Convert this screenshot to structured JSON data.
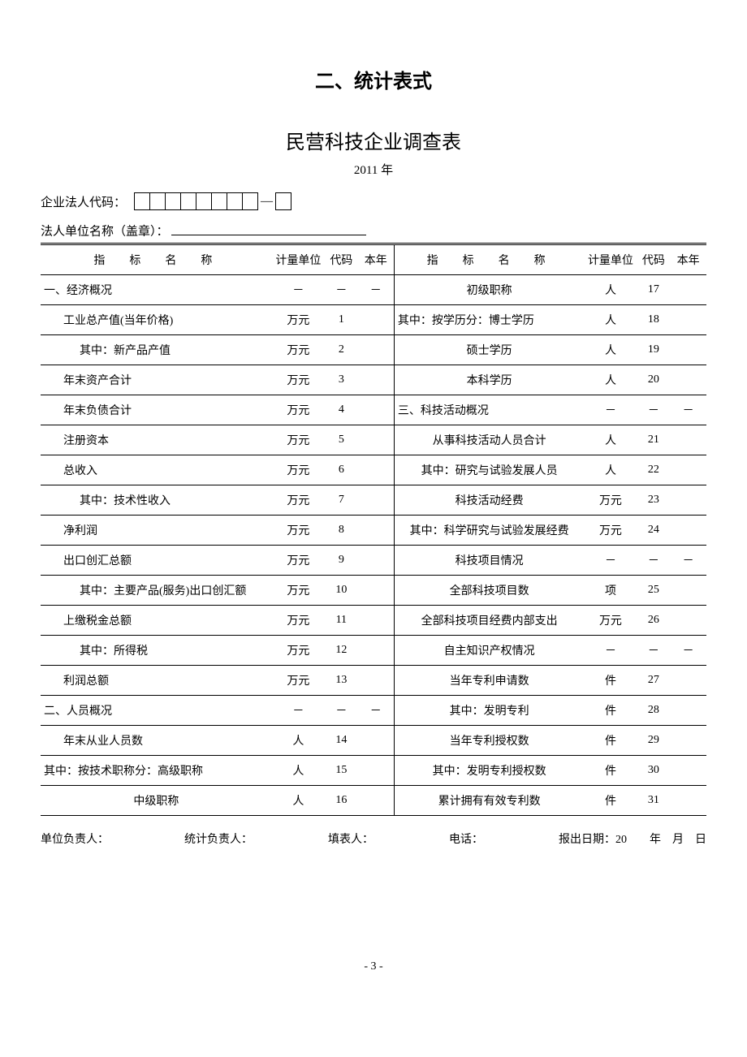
{
  "heading": "二、统计表式",
  "subtitle": "民营科技企业调查表",
  "year": "2011 年",
  "code_label": "企业法人代码：",
  "name_label": "法人单位名称（盖章）：",
  "headers": {
    "indicator": "指　标　名　称",
    "unit": "计量单位",
    "code": "代码",
    "year_col": "本年"
  },
  "rows": [
    {
      "l_name": "一、经济概况",
      "l_class": "tl bold",
      "l_unit": "－",
      "l_code": "－",
      "l_val": "－",
      "r_name": "初级职称",
      "r_class": "",
      "r_unit": "人",
      "r_code": "17",
      "r_val": ""
    },
    {
      "l_name": "工业总产值(当年价格)",
      "l_class": "indent1",
      "l_unit": "万元",
      "l_code": "1",
      "l_val": "",
      "r_name": "其中：按学历分：博士学历",
      "r_class": "tl",
      "r_unit": "人",
      "r_code": "18",
      "r_val": ""
    },
    {
      "l_name": "其中：新产品产值",
      "l_class": "indent2",
      "l_unit": "万元",
      "l_code": "2",
      "l_val": "",
      "r_name": "硕士学历",
      "r_class": "",
      "r_unit": "人",
      "r_code": "19",
      "r_val": ""
    },
    {
      "l_name": "年末资产合计",
      "l_class": "indent1",
      "l_unit": "万元",
      "l_code": "3",
      "l_val": "",
      "r_name": "本科学历",
      "r_class": "",
      "r_unit": "人",
      "r_code": "20",
      "r_val": ""
    },
    {
      "l_name": "年末负债合计",
      "l_class": "indent1",
      "l_unit": "万元",
      "l_code": "4",
      "l_val": "",
      "r_name": "三、科技活动概况",
      "r_class": "tl bold",
      "r_unit": "－",
      "r_code": "－",
      "r_val": "－"
    },
    {
      "l_name": "注册资本",
      "l_class": "indent1",
      "l_unit": "万元",
      "l_code": "5",
      "l_val": "",
      "r_name": "从事科技活动人员合计",
      "r_class": "",
      "r_unit": "人",
      "r_code": "21",
      "r_val": ""
    },
    {
      "l_name": "总收入",
      "l_class": "indent1",
      "l_unit": "万元",
      "l_code": "6",
      "l_val": "",
      "r_name": "其中：研究与试验发展人员",
      "r_class": "",
      "r_unit": "人",
      "r_code": "22",
      "r_val": ""
    },
    {
      "l_name": "其中：技术性收入",
      "l_class": "indent2",
      "l_unit": "万元",
      "l_code": "7",
      "l_val": "",
      "r_name": "科技活动经费",
      "r_class": "",
      "r_unit": "万元",
      "r_code": "23",
      "r_val": ""
    },
    {
      "l_name": "净利润",
      "l_class": "indent1",
      "l_unit": "万元",
      "l_code": "8",
      "l_val": "",
      "r_name": "其中：科学研究与试验发展经费",
      "r_class": "",
      "r_unit": "万元",
      "r_code": "24",
      "r_val": ""
    },
    {
      "l_name": "出口创汇总额",
      "l_class": "indent1",
      "l_unit": "万元",
      "l_code": "9",
      "l_val": "",
      "r_name": "科技项目情况",
      "r_class": "",
      "r_unit": "－",
      "r_code": "－",
      "r_val": "－"
    },
    {
      "l_name": "其中：主要产品(服务)出口创汇额",
      "l_class": "indent2",
      "l_unit": "万元",
      "l_code": "10",
      "l_val": "",
      "r_name": "全部科技项目数",
      "r_class": "",
      "r_unit": "项",
      "r_code": "25",
      "r_val": ""
    },
    {
      "l_name": "上缴税金总额",
      "l_class": "indent1",
      "l_unit": "万元",
      "l_code": "11",
      "l_val": "",
      "r_name": "全部科技项目经费内部支出",
      "r_class": "",
      "r_unit": "万元",
      "r_code": "26",
      "r_val": ""
    },
    {
      "l_name": "其中：所得税",
      "l_class": "indent2",
      "l_unit": "万元",
      "l_code": "12",
      "l_val": "",
      "r_name": "自主知识产权情况",
      "r_class": "",
      "r_unit": "－",
      "r_code": "－",
      "r_val": "－"
    },
    {
      "l_name": "利润总额",
      "l_class": "indent1",
      "l_unit": "万元",
      "l_code": "13",
      "l_val": "",
      "r_name": "当年专利申请数",
      "r_class": "",
      "r_unit": "件",
      "r_code": "27",
      "r_val": ""
    },
    {
      "l_name": "二、人员概况",
      "l_class": "tl bold",
      "l_unit": "－",
      "l_code": "－",
      "l_val": "－",
      "r_name": "其中：发明专利",
      "r_class": "",
      "r_unit": "件",
      "r_code": "28",
      "r_val": ""
    },
    {
      "l_name": "年末从业人员数",
      "l_class": "indent1",
      "l_unit": "人",
      "l_code": "14",
      "l_val": "",
      "r_name": "当年专利授权数",
      "r_class": "",
      "r_unit": "件",
      "r_code": "29",
      "r_val": ""
    },
    {
      "l_name": "其中：按技术职称分：高级职称",
      "l_class": "tl",
      "l_unit": "人",
      "l_code": "15",
      "l_val": "",
      "r_name": "其中：发明专利授权数",
      "r_class": "",
      "r_unit": "件",
      "r_code": "30",
      "r_val": ""
    },
    {
      "l_name": "中级职称",
      "l_class": "",
      "l_unit": "人",
      "l_code": "16",
      "l_val": "",
      "r_name": "累计拥有有效专利数",
      "r_class": "",
      "r_unit": "件",
      "r_code": "31",
      "r_val": ""
    }
  ],
  "footer": {
    "unit_head": "单位负责人：",
    "stat_head": "统计负责人：",
    "filler": "填表人：",
    "phone": "电话：",
    "date": "报出日期：20　　年　月　日"
  },
  "page_number": "- 3 -",
  "colors": {
    "text": "#000000",
    "bg": "#ffffff",
    "border": "#000000"
  }
}
